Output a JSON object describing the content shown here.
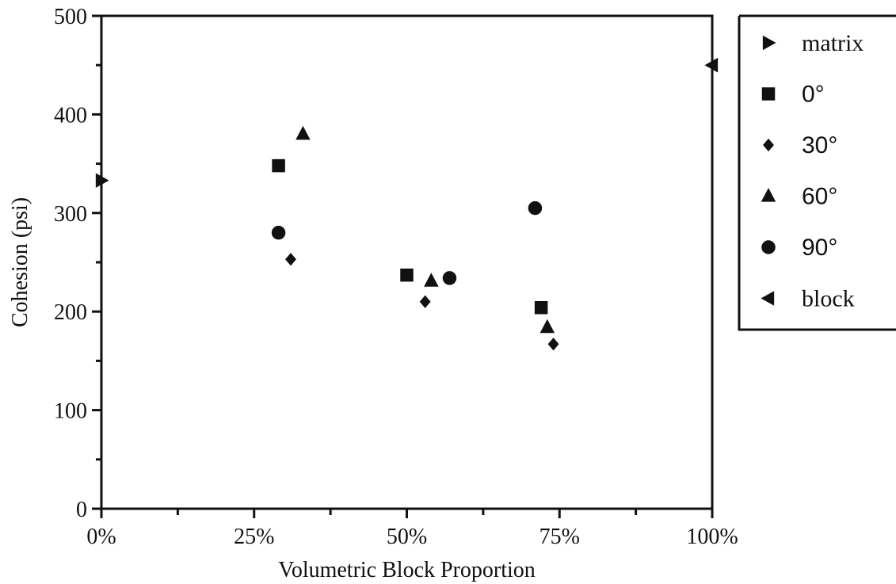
{
  "chart_data": {
    "type": "scatter",
    "xlabel": "Volumetric Block Proportion",
    "ylabel": "Cohesion (psi)",
    "xlim": [
      0,
      100
    ],
    "ylim": [
      0,
      500
    ],
    "x_ticks": [
      0,
      25,
      50,
      75,
      100
    ],
    "x_tick_labels": [
      "0%",
      "25%",
      "50%",
      "75%",
      "100%"
    ],
    "y_ticks": [
      0,
      100,
      200,
      300,
      400,
      500
    ],
    "y_tick_labels": [
      "0",
      "100",
      "200",
      "300",
      "400",
      "500"
    ],
    "grid": false,
    "legend_position": "right",
    "series": [
      {
        "name": "matrix",
        "marker": "triangle-right",
        "points": [
          [
            0,
            333
          ]
        ]
      },
      {
        "name": "0°",
        "marker": "square",
        "points": [
          [
            29,
            348
          ],
          [
            50,
            237
          ],
          [
            72,
            204
          ]
        ]
      },
      {
        "name": "30°",
        "marker": "diamond",
        "points": [
          [
            31,
            253
          ],
          [
            53,
            210
          ],
          [
            74,
            167
          ]
        ]
      },
      {
        "name": "60°",
        "marker": "triangle-up",
        "points": [
          [
            33,
            380
          ],
          [
            54,
            231
          ],
          [
            73,
            184
          ]
        ]
      },
      {
        "name": "90°",
        "marker": "circle",
        "points": [
          [
            29,
            280
          ],
          [
            57,
            234
          ],
          [
            71,
            305
          ]
        ]
      },
      {
        "name": "block",
        "marker": "triangle-left",
        "points": [
          [
            100,
            450
          ]
        ]
      }
    ]
  }
}
